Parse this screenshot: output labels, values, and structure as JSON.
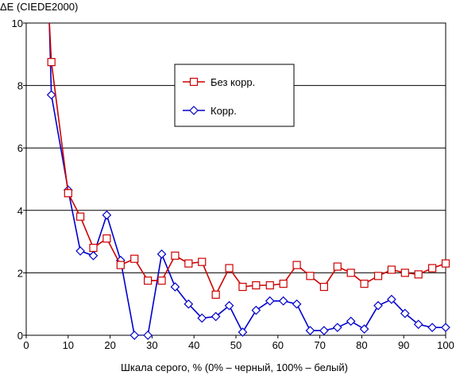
{
  "chart_data": {
    "type": "line",
    "title": "",
    "ylabel": "ΔE (CIEDE2000)",
    "xlabel": "Шкала серого, % (0% – черный, 100% – белый)",
    "xlim": [
      0,
      100
    ],
    "ylim": [
      0,
      10
    ],
    "xticks": [
      0,
      10,
      20,
      30,
      40,
      50,
      60,
      70,
      80,
      90,
      100
    ],
    "yticks": [
      0,
      2,
      4,
      6,
      8,
      10
    ],
    "grid": "horizontal",
    "legend_position": "upper-center",
    "series": [
      {
        "name": "Без корр.",
        "color": "#cc0000",
        "marker": "square",
        "x": [
          6,
          10,
          12.9,
          16,
          19.2,
          22.5,
          25.8,
          29,
          32.3,
          35.5,
          38.7,
          41.9,
          45.2,
          48.4,
          51.6,
          54.8,
          58.1,
          61.3,
          64.5,
          67.7,
          71,
          74.2,
          77.4,
          80.6,
          83.9,
          87.1,
          90.3,
          93.5,
          96.8,
          100
        ],
        "y": [
          8.75,
          4.55,
          3.8,
          2.8,
          3.1,
          2.25,
          2.45,
          1.75,
          1.75,
          2.55,
          2.3,
          2.35,
          1.3,
          2.15,
          1.55,
          1.6,
          1.6,
          1.65,
          2.25,
          1.9,
          1.55,
          2.2,
          2.0,
          1.65,
          1.9,
          2.1,
          2.0,
          1.95,
          2.15,
          2.3
        ]
      },
      {
        "name": "Корр.",
        "color": "#0000cc",
        "marker": "diamond",
        "x": [
          6,
          10,
          12.9,
          16,
          19.2,
          22.5,
          25.8,
          29,
          32.3,
          35.5,
          38.7,
          41.9,
          45.2,
          48.4,
          51.6,
          54.8,
          58.1,
          61.3,
          64.5,
          67.7,
          71,
          74.2,
          77.4,
          80.6,
          83.9,
          87.1,
          90.3,
          93.5,
          96.8,
          100
        ],
        "y": [
          7.7,
          4.65,
          2.7,
          2.55,
          3.85,
          2.4,
          0.0,
          0.0,
          2.6,
          1.55,
          1.0,
          0.55,
          0.6,
          0.95,
          0.1,
          0.8,
          1.1,
          1.1,
          1.0,
          0.15,
          0.15,
          0.25,
          0.45,
          0.2,
          0.95,
          1.15,
          0.7,
          0.35,
          0.25,
          0.25
        ]
      }
    ]
  }
}
